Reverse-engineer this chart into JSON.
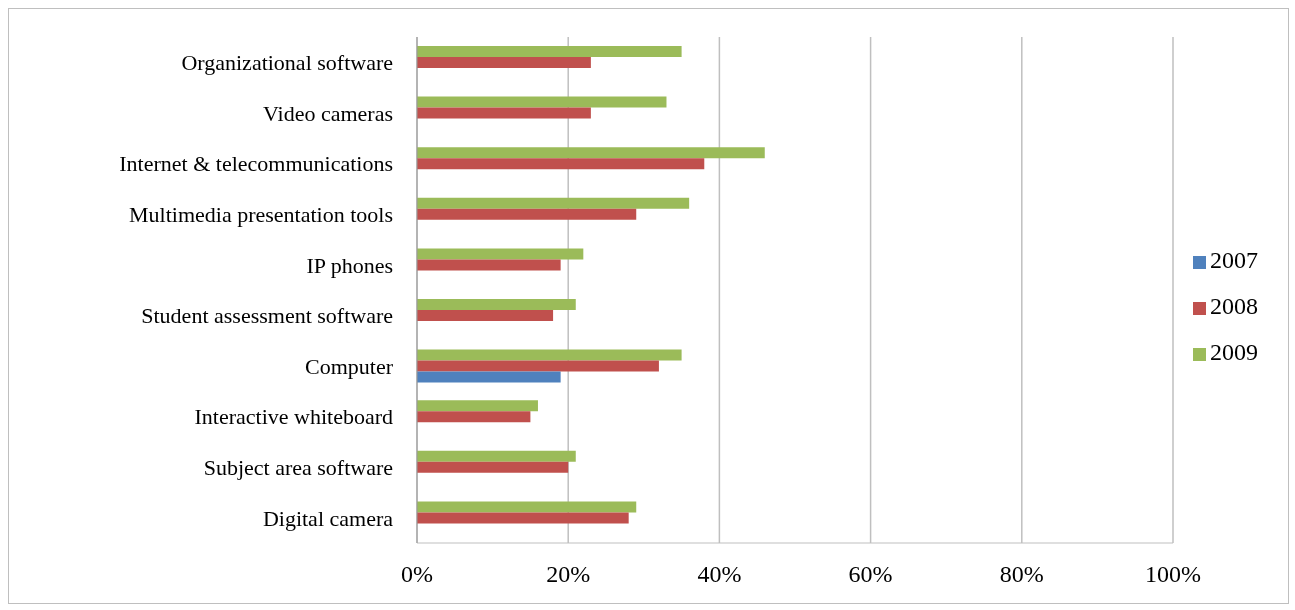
{
  "chart_data": {
    "type": "bar",
    "orientation": "horizontal",
    "categories": [
      "Organizational software",
      "Video cameras",
      "Internet & telecommunications",
      "Multimedia presentation tools",
      "IP phones",
      "Student assessment software",
      "Computer",
      "Interactive whiteboard",
      "Subject area software",
      "Digital camera"
    ],
    "series": [
      {
        "name": "2009",
        "color": "#9bbb59",
        "values": [
          35,
          33,
          46,
          36,
          22,
          21,
          35,
          16,
          21,
          29
        ]
      },
      {
        "name": "2008",
        "color": "#c0504d",
        "values": [
          23,
          23,
          38,
          29,
          19,
          18,
          32,
          15,
          20,
          28
        ]
      },
      {
        "name": "2007",
        "color": "#4f81bd",
        "values": [
          null,
          null,
          null,
          null,
          null,
          null,
          19,
          null,
          null,
          null
        ]
      }
    ],
    "xlim": [
      0,
      100
    ],
    "xticks": [
      {
        "value": 0,
        "label": "0%"
      },
      {
        "value": 20,
        "label": "20%"
      },
      {
        "value": 40,
        "label": "40%"
      },
      {
        "value": 60,
        "label": "60%"
      },
      {
        "value": 80,
        "label": "80%"
      },
      {
        "value": 100,
        "label": "100%"
      }
    ],
    "grid": "x",
    "legend": "right"
  }
}
